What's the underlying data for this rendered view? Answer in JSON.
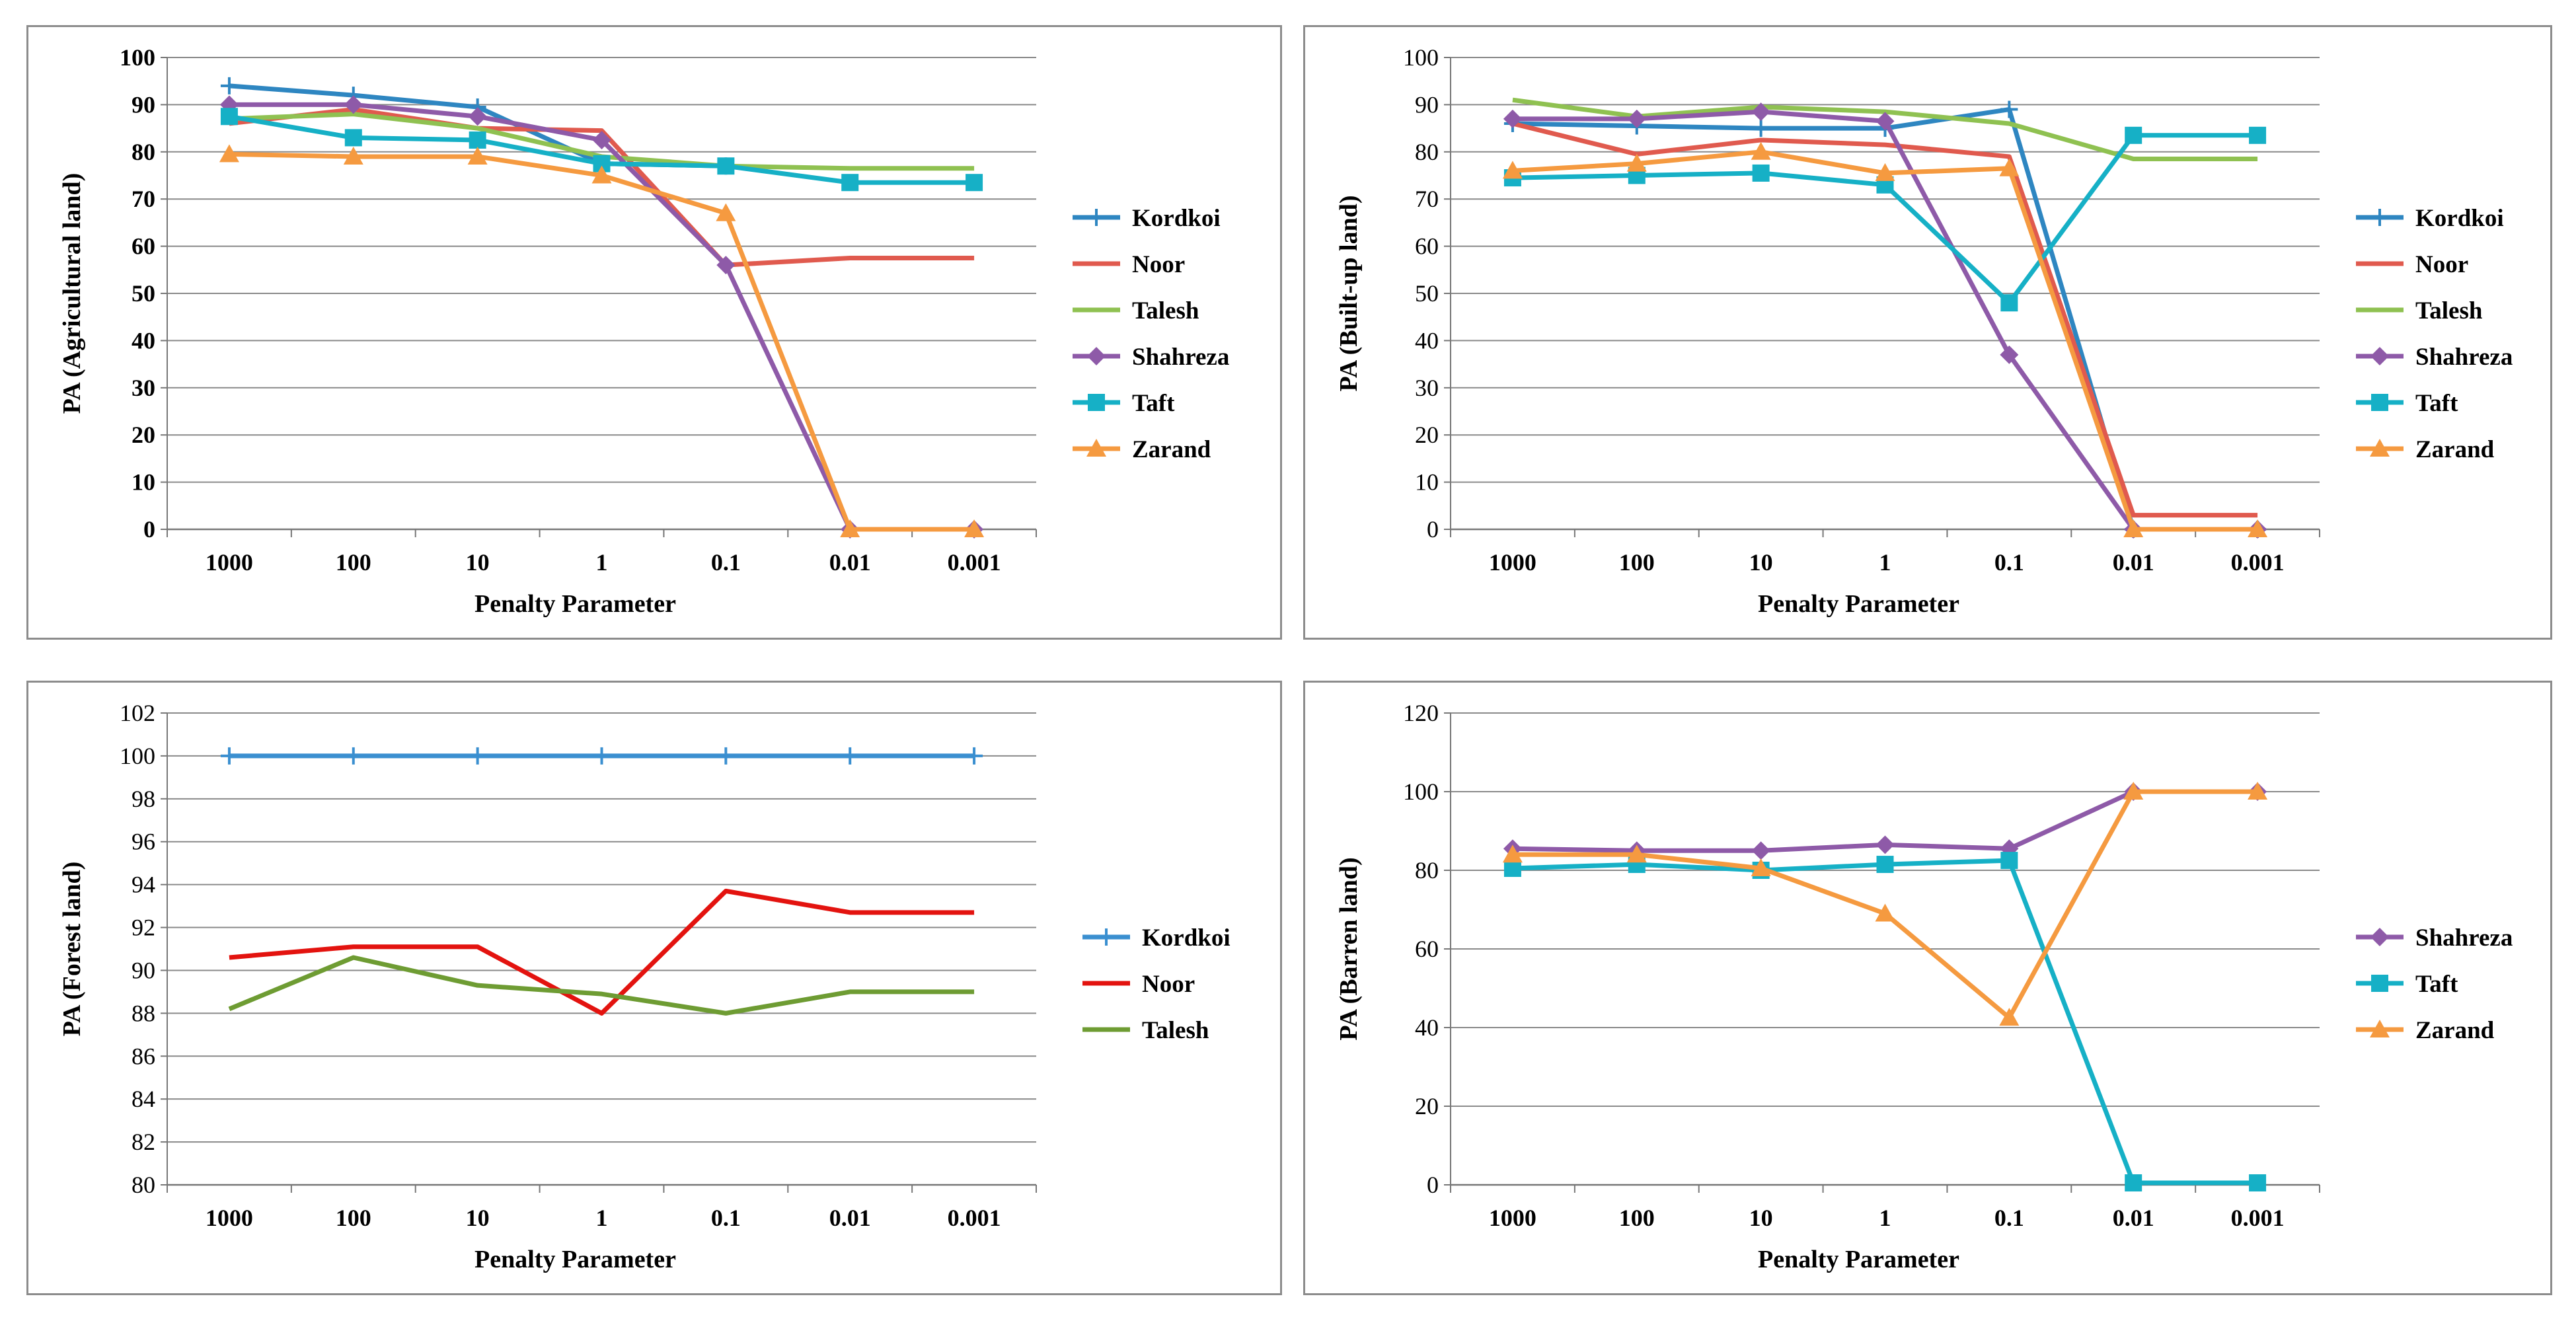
{
  "chart_data": [
    {
      "type": "line",
      "title": "",
      "xlabel": "Penalty Parameter",
      "ylabel": "PA (Agricultural land)",
      "categories": [
        "1000",
        "100",
        "10",
        "1",
        "0.1",
        "0.01",
        "0.001"
      ],
      "ylim": [
        0,
        100
      ],
      "yticks": [
        "0",
        "10",
        "20",
        "30",
        "40",
        "50",
        "60",
        "70",
        "80",
        "90",
        "100"
      ],
      "grid": true,
      "legend": "right",
      "series": [
        {
          "name": "Kordkoi",
          "color": "#2e86c1",
          "marker": "plus",
          "values": [
            94,
            92,
            89.5,
            77.5,
            77,
            null,
            null
          ]
        },
        {
          "name": "Noor",
          "color": "#e05a4e",
          "marker": "none",
          "values": [
            86,
            89,
            85,
            84.5,
            56,
            57.5,
            57.5
          ]
        },
        {
          "name": "Talesh",
          "color": "#8fc151",
          "marker": "none",
          "values": [
            87,
            88,
            85,
            79,
            77,
            76.5,
            76.5
          ]
        },
        {
          "name": "Shahreza",
          "color": "#8e5aa8",
          "marker": "diamond",
          "values": [
            90,
            90,
            87.5,
            82.5,
            56,
            0,
            0
          ]
        },
        {
          "name": "Taft",
          "color": "#16b0c6",
          "marker": "square",
          "values": [
            87.5,
            83,
            82.5,
            77.5,
            77,
            73.5,
            73.5
          ]
        },
        {
          "name": "Zarand",
          "color": "#f59a40",
          "marker": "triangle",
          "values": [
            79.5,
            79,
            79,
            75,
            67,
            0,
            0
          ]
        }
      ]
    },
    {
      "type": "line",
      "title": "",
      "xlabel": "Penalty Parameter",
      "ylabel": "PA (Built-up land)",
      "categories": [
        "1000",
        "100",
        "10",
        "1",
        "0.1",
        "0.01",
        "0.001"
      ],
      "ylim": [
        0,
        100
      ],
      "yticks": [
        "0",
        "10",
        "20",
        "30",
        "40",
        "50",
        "60",
        "70",
        "80",
        "90",
        "100"
      ],
      "grid": true,
      "legend": "right",
      "series": [
        {
          "name": "Kordkoi",
          "color": "#2e86c1",
          "marker": "plus",
          "values": [
            86,
            85.5,
            85,
            85,
            89,
            0,
            0
          ]
        },
        {
          "name": "Noor",
          "color": "#e05a4e",
          "marker": "none",
          "values": [
            86,
            79.5,
            82.5,
            81.5,
            79,
            3,
            3
          ]
        },
        {
          "name": "Talesh",
          "color": "#8fc151",
          "marker": "none",
          "values": [
            91,
            87.5,
            89.5,
            88.5,
            86,
            78.5,
            78.5
          ]
        },
        {
          "name": "Shahreza",
          "color": "#8e5aa8",
          "marker": "diamond",
          "values": [
            87,
            87,
            88.5,
            86.5,
            37,
            0,
            0
          ]
        },
        {
          "name": "Taft",
          "color": "#16b0c6",
          "marker": "square",
          "values": [
            74.5,
            75,
            75.5,
            73,
            48,
            83.5,
            83.5
          ]
        },
        {
          "name": "Zarand",
          "color": "#f59a40",
          "marker": "triangle",
          "values": [
            76,
            77.5,
            80,
            75.5,
            76.5,
            0,
            0
          ]
        }
      ]
    },
    {
      "type": "line",
      "title": "",
      "xlabel": "Penalty Parameter",
      "ylabel": "PA (Forest land)",
      "categories": [
        "1000",
        "100",
        "10",
        "1",
        "0.1",
        "0.01",
        "0.001"
      ],
      "ylim": [
        80,
        102
      ],
      "yticks": [
        "80",
        "82",
        "84",
        "86",
        "88",
        "90",
        "92",
        "94",
        "96",
        "98",
        "100",
        "102"
      ],
      "grid": true,
      "legend": "right",
      "series": [
        {
          "name": "Kordkoi",
          "color": "#3a8fd0",
          "marker": "plus",
          "values": [
            100,
            100,
            100,
            100,
            100,
            100,
            100
          ]
        },
        {
          "name": "Noor",
          "color": "#e3130f",
          "marker": "none",
          "values": [
            90.6,
            91.1,
            91.1,
            88,
            93.7,
            92.7,
            92.7
          ]
        },
        {
          "name": "Talesh",
          "color": "#6e9c33",
          "marker": "none",
          "values": [
            88.2,
            90.6,
            89.3,
            88.9,
            88,
            89,
            89
          ]
        }
      ]
    },
    {
      "type": "line",
      "title": "",
      "xlabel": "Penalty Parameter",
      "ylabel": "PA (Barren land)",
      "categories": [
        "1000",
        "100",
        "10",
        "1",
        "0.1",
        "0.01",
        "0.001"
      ],
      "ylim": [
        0,
        120
      ],
      "yticks": [
        "0",
        "20",
        "40",
        "60",
        "80",
        "100",
        "120"
      ],
      "grid": true,
      "legend": "right",
      "series": [
        {
          "name": "Shahreza",
          "color": "#8e5aa8",
          "marker": "diamond",
          "values": [
            85.5,
            85,
            85,
            86.5,
            85.5,
            100,
            100
          ]
        },
        {
          "name": "Taft",
          "color": "#16b0c6",
          "marker": "square",
          "values": [
            80.5,
            81.5,
            80,
            81.5,
            82.5,
            0.5,
            0.5
          ]
        },
        {
          "name": "Zarand",
          "color": "#f59a40",
          "marker": "triangle",
          "values": [
            84,
            84,
            80.5,
            69,
            42.5,
            100,
            100
          ]
        }
      ]
    }
  ]
}
